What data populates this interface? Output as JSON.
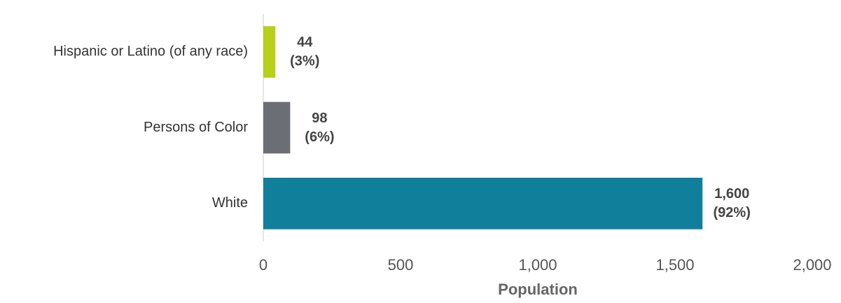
{
  "chart_data": {
    "type": "bar",
    "orientation": "horizontal",
    "categories": [
      "Hispanic or Latino (of any race)",
      "Persons of Color",
      "White"
    ],
    "values": [
      44,
      98,
      1600
    ],
    "value_labels": [
      "44",
      "98",
      "1,600"
    ],
    "percent_labels": [
      "(3%)",
      "(6%)",
      "(92%)"
    ],
    "colors": [
      "#b8cf1c",
      "#6b6f75",
      "#0f7f9c"
    ],
    "xlabel": "Population",
    "xlim": [
      0,
      2000
    ],
    "xticks": [
      0,
      500,
      {
        "value": 1000,
        "label": "1,000"
      },
      {
        "value": 1500,
        "label": "1,500"
      },
      {
        "value": 2000,
        "label": "2,000"
      }
    ],
    "grid": false
  }
}
